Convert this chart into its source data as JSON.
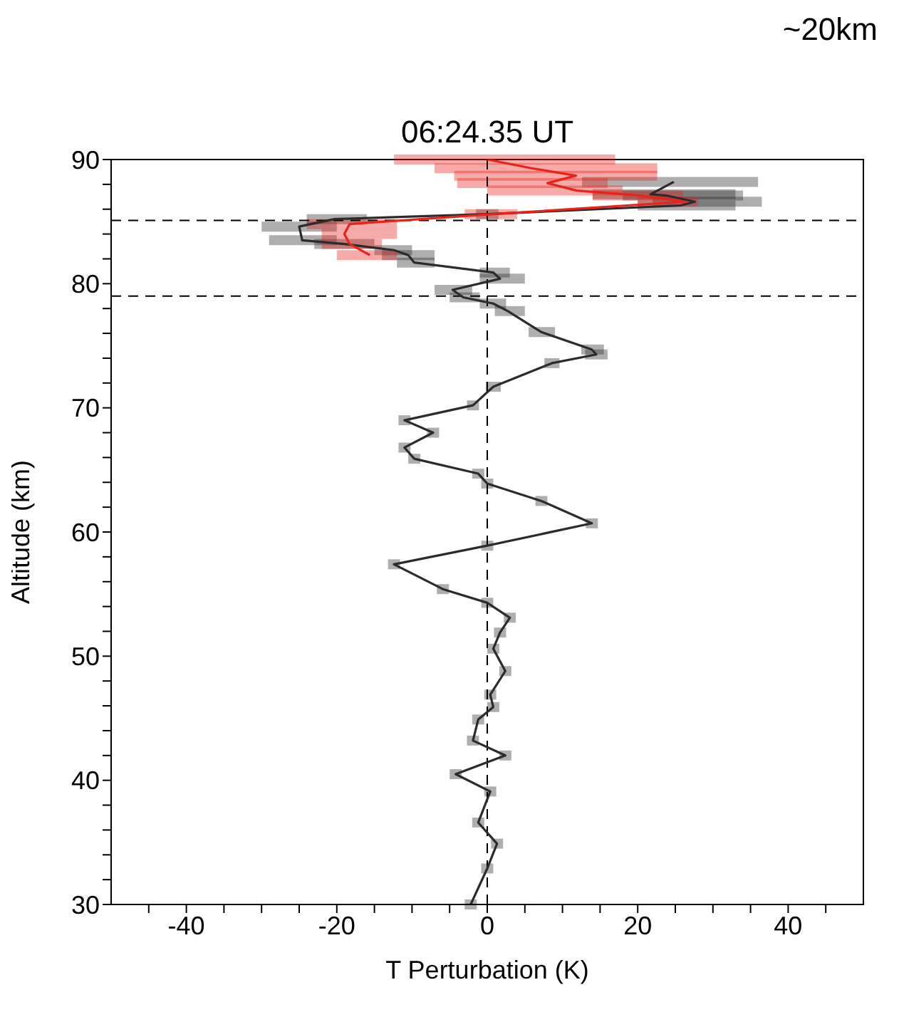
{
  "chart_data": {
    "type": "line",
    "title": "06:24.35 UT",
    "xlabel": "T Perturbation (K)",
    "ylabel": "Altitude (km)",
    "annotations": [
      "~20km"
    ],
    "xlim": [
      -50,
      50
    ],
    "ylim": [
      30,
      90
    ],
    "xticks": [
      {
        "value": -45,
        "label": null
      },
      -40,
      {
        "value": -35,
        "label": null
      },
      {
        "value": -30,
        "label": null
      },
      {
        "value": -25,
        "label": null
      },
      -20,
      {
        "value": -15,
        "label": null
      },
      {
        "value": -10,
        "label": null
      },
      {
        "value": -5,
        "label": null
      },
      0,
      {
        "value": 5,
        "label": null
      },
      {
        "value": 10,
        "label": null
      },
      {
        "value": 15,
        "label": null
      },
      20,
      {
        "value": 25,
        "label": null
      },
      {
        "value": 30,
        "label": null
      },
      {
        "value": 35,
        "label": null
      },
      40,
      {
        "value": 45,
        "label": null
      }
    ],
    "yticks": [
      30,
      {
        "value": 32,
        "label": null
      },
      {
        "value": 34,
        "label": null
      },
      {
        "value": 36,
        "label": null
      },
      {
        "value": 38,
        "label": null
      },
      40,
      {
        "value": 42,
        "label": null
      },
      {
        "value": 44,
        "label": null
      },
      {
        "value": 46,
        "label": null
      },
      {
        "value": 48,
        "label": null
      },
      50,
      {
        "value": 52,
        "label": null
      },
      {
        "value": 54,
        "label": null
      },
      {
        "value": 56,
        "label": null
      },
      {
        "value": 58,
        "label": null
      },
      60,
      {
        "value": 62,
        "label": null
      },
      {
        "value": 64,
        "label": null
      },
      {
        "value": 66,
        "label": null
      },
      {
        "value": 68,
        "label": null
      },
      70,
      {
        "value": 72,
        "label": null
      },
      {
        "value": 74,
        "label": null
      },
      {
        "value": 76,
        "label": null
      },
      {
        "value": 78,
        "label": null
      },
      80,
      {
        "value": 82,
        "label": null
      },
      {
        "value": 84,
        "label": null
      },
      {
        "value": 86,
        "label": null
      },
      {
        "value": 88,
        "label": null
      },
      90
    ],
    "grid": false,
    "marker": "none",
    "ref_lines": [
      {
        "axis": "x",
        "value": 0,
        "color": "#000000",
        "line_style": "dashed"
      },
      {
        "axis": "y",
        "value": 85.1,
        "color": "#000000",
        "line_style": "dashed"
      },
      {
        "axis": "y",
        "value": 79.0,
        "color": "#000000",
        "line_style": "dashed"
      }
    ],
    "series": [
      {
        "color": "#2b2b2b",
        "x": [
          24.8,
          21.7,
          23.8,
          27.6,
          25.7,
          0,
          -20.3,
          -25,
          -24.6,
          -19,
          -12.4,
          -10.5,
          -9.7,
          0.8,
          1.7,
          -4.6,
          -3.2,
          0.8,
          2.7,
          7.2,
          13.9,
          14.5,
          8.6,
          0.8,
          -1.9,
          -11,
          -7.2,
          -11,
          -9.7,
          -1.2,
          0,
          7.2,
          13.9,
          0,
          -12.4,
          -5.9,
          0,
          3.0,
          1.7,
          0.8,
          2.4,
          0.4,
          0.8,
          -1.2,
          -1.9,
          2.4,
          -4.2,
          0.4,
          -1.2,
          1.3,
          0,
          -2.2
        ],
        "values": [
          88.2,
          87.2,
          87.1,
          86.6,
          86.3,
          85.6,
          85.2,
          84.6,
          83.5,
          83.2,
          82.7,
          82.3,
          81.7,
          80.9,
          80.4,
          79.5,
          78.9,
          78.4,
          77.8,
          76.1,
          74.7,
          74.3,
          73.6,
          71.7,
          70.2,
          69.0,
          68.0,
          66.8,
          65.9,
          64.7,
          63.9,
          62.5,
          60.7,
          58.9,
          57.4,
          55.4,
          54.3,
          53.1,
          51.9,
          50.6,
          48.8,
          46.9,
          45.9,
          44.9,
          43.2,
          42.0,
          40.5,
          39.1,
          36.6,
          34.9,
          32.9,
          30.0
        ],
        "xerrors": [
          [
            12.6,
            36
          ],
          [
            14,
            33
          ],
          [
            18,
            34
          ],
          [
            22,
            36.5
          ],
          [
            20,
            33
          ],
          [
            -1.5,
            1.5
          ],
          [
            -24,
            -16
          ],
          [
            -30,
            -20
          ],
          [
            -29,
            -20
          ],
          [
            -23,
            -15
          ],
          [
            -15,
            -10
          ],
          [
            -14,
            -7
          ],
          [
            -12,
            -7
          ],
          [
            -1,
            3
          ],
          [
            -1,
            5
          ],
          [
            -7,
            -2
          ],
          [
            -5,
            -1
          ],
          [
            -1,
            2.5
          ],
          [
            1,
            5
          ],
          [
            5.5,
            9
          ],
          [
            12.5,
            15.5
          ],
          [
            13,
            16
          ],
          [
            7.6,
            9.6
          ],
          [
            -0.2,
            1.8
          ],
          [
            -2.7,
            -1.1
          ],
          [
            -11.8,
            -10.2
          ],
          [
            -8,
            -6.4
          ],
          [
            -11.8,
            -10.2
          ],
          [
            -10.5,
            -8.9
          ],
          [
            -2,
            -0.4
          ],
          [
            -0.8,
            0.8
          ],
          [
            6.4,
            8
          ],
          [
            13.1,
            14.7
          ],
          [
            -0.8,
            0.8
          ],
          [
            -13.2,
            -11.6
          ],
          [
            -6.7,
            -5.1
          ],
          [
            -0.8,
            0.8
          ],
          [
            2.2,
            3.8
          ],
          [
            0.9,
            2.5
          ],
          [
            0,
            1.6
          ],
          [
            1.6,
            3.2
          ],
          [
            -0.4,
            1.2
          ],
          [
            0,
            1.6
          ],
          [
            -2,
            -0.4
          ],
          [
            -2.7,
            -1.1
          ],
          [
            1.6,
            3.2
          ],
          [
            -5,
            -3.4
          ],
          [
            -0.4,
            1.2
          ],
          [
            -2,
            -0.4
          ],
          [
            0.5,
            2.1
          ],
          [
            -0.8,
            0.8
          ],
          [
            -3,
            -1.4
          ]
        ]
      },
      {
        "color": "#e8231a",
        "x": [
          0,
          5.9,
          11.8,
          8,
          11.9,
          20.4,
          26.3,
          0.8,
          -18.3,
          -19,
          -18.3,
          -15.6
        ],
        "values": [
          90,
          89.3,
          88.7,
          88.1,
          87.5,
          87.1,
          86.6,
          85.6,
          84.8,
          84.0,
          83.2,
          82.3
        ],
        "xerrors": [
          [
            -12.4,
            17
          ],
          [
            -7,
            22.6
          ],
          [
            -4.4,
            22.6
          ],
          [
            -4,
            16
          ],
          [
            0,
            18
          ],
          [
            14,
            26
          ],
          [
            20,
            28
          ],
          [
            -3,
            4
          ],
          [
            -24,
            -12
          ],
          [
            -22,
            -12
          ],
          [
            -22,
            -14
          ],
          [
            -20,
            -12
          ]
        ]
      }
    ]
  }
}
